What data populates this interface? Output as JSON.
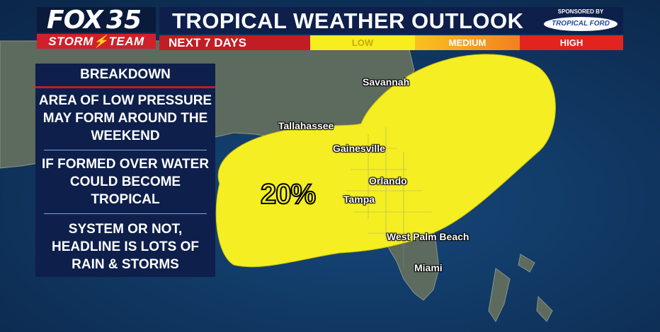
{
  "logo": {
    "brand": "FOX",
    "number": "35",
    "sub": "STORM⚡TEAM"
  },
  "header": {
    "title": "TROPICAL WEATHER OUTLOOK",
    "subtitle": "NEXT 7 DAYS",
    "sponsor_label": "SPONSORED BY",
    "sponsor_logo": "TROPICAL FORD"
  },
  "legend": [
    {
      "label": "LOW",
      "color": "#f6ee1e"
    },
    {
      "label": "MEDIUM",
      "color": "#f89b20"
    },
    {
      "label": "HIGH",
      "color": "#e1241f"
    }
  ],
  "panel": {
    "title": "BREAKDOWN",
    "items": [
      "AREA OF LOW PRESSURE MAY FORM AROUND THE WEEKEND",
      "IF FORMED OVER WATER COULD BECOME TROPICAL",
      "SYSTEM OR NOT, HEADLINE IS LOTS OF RAIN & STORMS"
    ]
  },
  "map": {
    "probability": "20%",
    "cities": [
      "Savannah",
      "Tallahassee",
      "Gainesville",
      "Orlando",
      "Tampa",
      "West Palm Beach",
      "Miami"
    ]
  }
}
